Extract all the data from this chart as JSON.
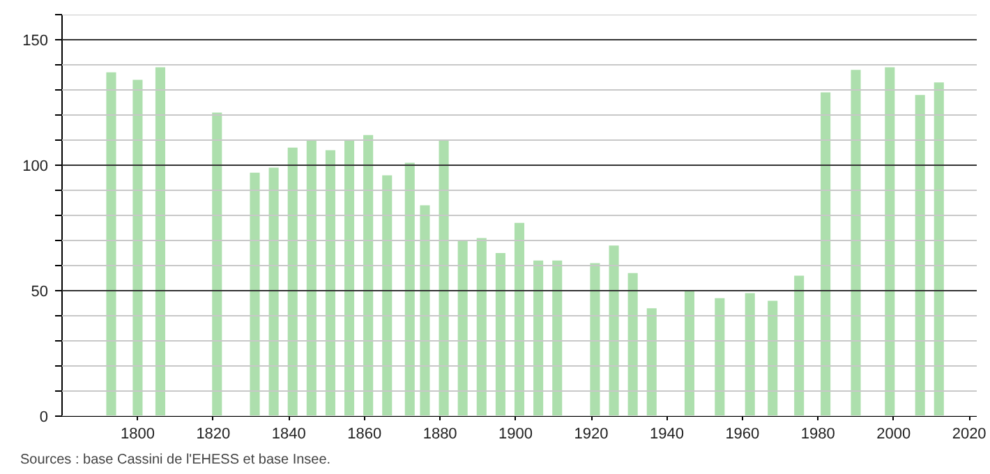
{
  "chart_data": {
    "type": "bar",
    "x": [
      1793,
      1800,
      1806,
      1821,
      1831,
      1836,
      1841,
      1846,
      1851,
      1856,
      1861,
      1866,
      1872,
      1876,
      1881,
      1886,
      1891,
      1896,
      1901,
      1906,
      1911,
      1921,
      1926,
      1931,
      1936,
      1946,
      1954,
      1962,
      1968,
      1975,
      1982,
      1990,
      1999,
      2007,
      2012
    ],
    "values": [
      137,
      134,
      139,
      121,
      97,
      99,
      107,
      110,
      106,
      110,
      112,
      96,
      101,
      84,
      110,
      70,
      71,
      65,
      77,
      62,
      62,
      61,
      68,
      57,
      43,
      50,
      47,
      49,
      46,
      56,
      129,
      138,
      139,
      128,
      133
    ],
    "color": "#addfad",
    "xlim": [
      1780,
      2022
    ],
    "xticks": [
      1800,
      1820,
      1840,
      1860,
      1880,
      1900,
      1920,
      1940,
      1960,
      1980,
      2000,
      2020
    ],
    "ylim": [
      0,
      160
    ],
    "yticks": [
      0,
      {
        "value": 10,
        "label": null
      },
      {
        "value": 20,
        "label": null
      },
      {
        "value": 30,
        "label": null
      },
      {
        "value": 40,
        "label": null
      },
      50,
      {
        "value": 60,
        "label": null
      },
      {
        "value": 70,
        "label": null
      },
      {
        "value": 80,
        "label": null
      },
      {
        "value": 90,
        "label": null
      },
      100,
      {
        "value": 110,
        "label": null
      },
      {
        "value": 120,
        "label": null
      },
      {
        "value": 130,
        "label": null
      },
      {
        "value": 140,
        "label": null
      },
      150,
      {
        "value": 160,
        "label": null
      }
    ],
    "grid": "y",
    "annotations": [
      "Sources : base Cassini de l'EHESS et base Insee."
    ]
  }
}
